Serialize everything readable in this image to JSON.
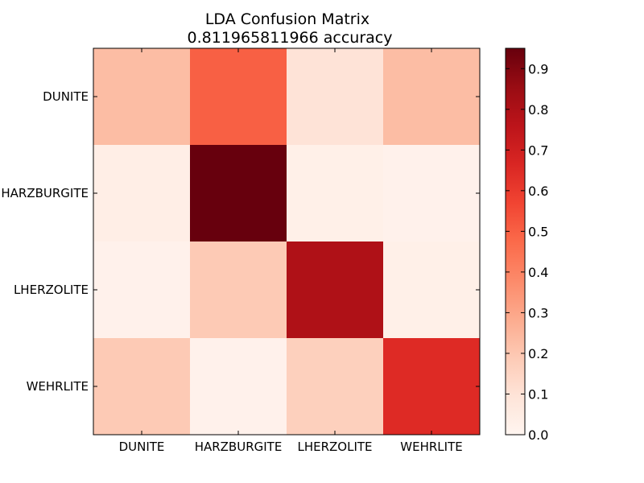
{
  "chart_data": {
    "type": "heatmap",
    "title": "LDA Confusion Matrix",
    "subtitle": "0.811965811966 accuracy",
    "rows": [
      "DUNITE",
      "HARZBURGITE",
      "LHERZOLITE",
      "WEHRLITE"
    ],
    "cols": [
      "DUNITE",
      "HARZBURGITE",
      "LHERZOLITE",
      "WEHRLITE"
    ],
    "values": [
      [
        0.23,
        0.5,
        0.1,
        0.23
      ],
      [
        0.04,
        0.95,
        0.03,
        0.02
      ],
      [
        0.02,
        0.19,
        0.8,
        0.03
      ],
      [
        0.19,
        0.02,
        0.17,
        0.65
      ]
    ],
    "colorbar": {
      "min": 0.0,
      "max": 0.95,
      "ticks": [
        "0.0",
        "0.1",
        "0.2",
        "0.3",
        "0.4",
        "0.5",
        "0.6",
        "0.7",
        "0.8",
        "0.9"
      ],
      "colormap": "Reds"
    }
  }
}
